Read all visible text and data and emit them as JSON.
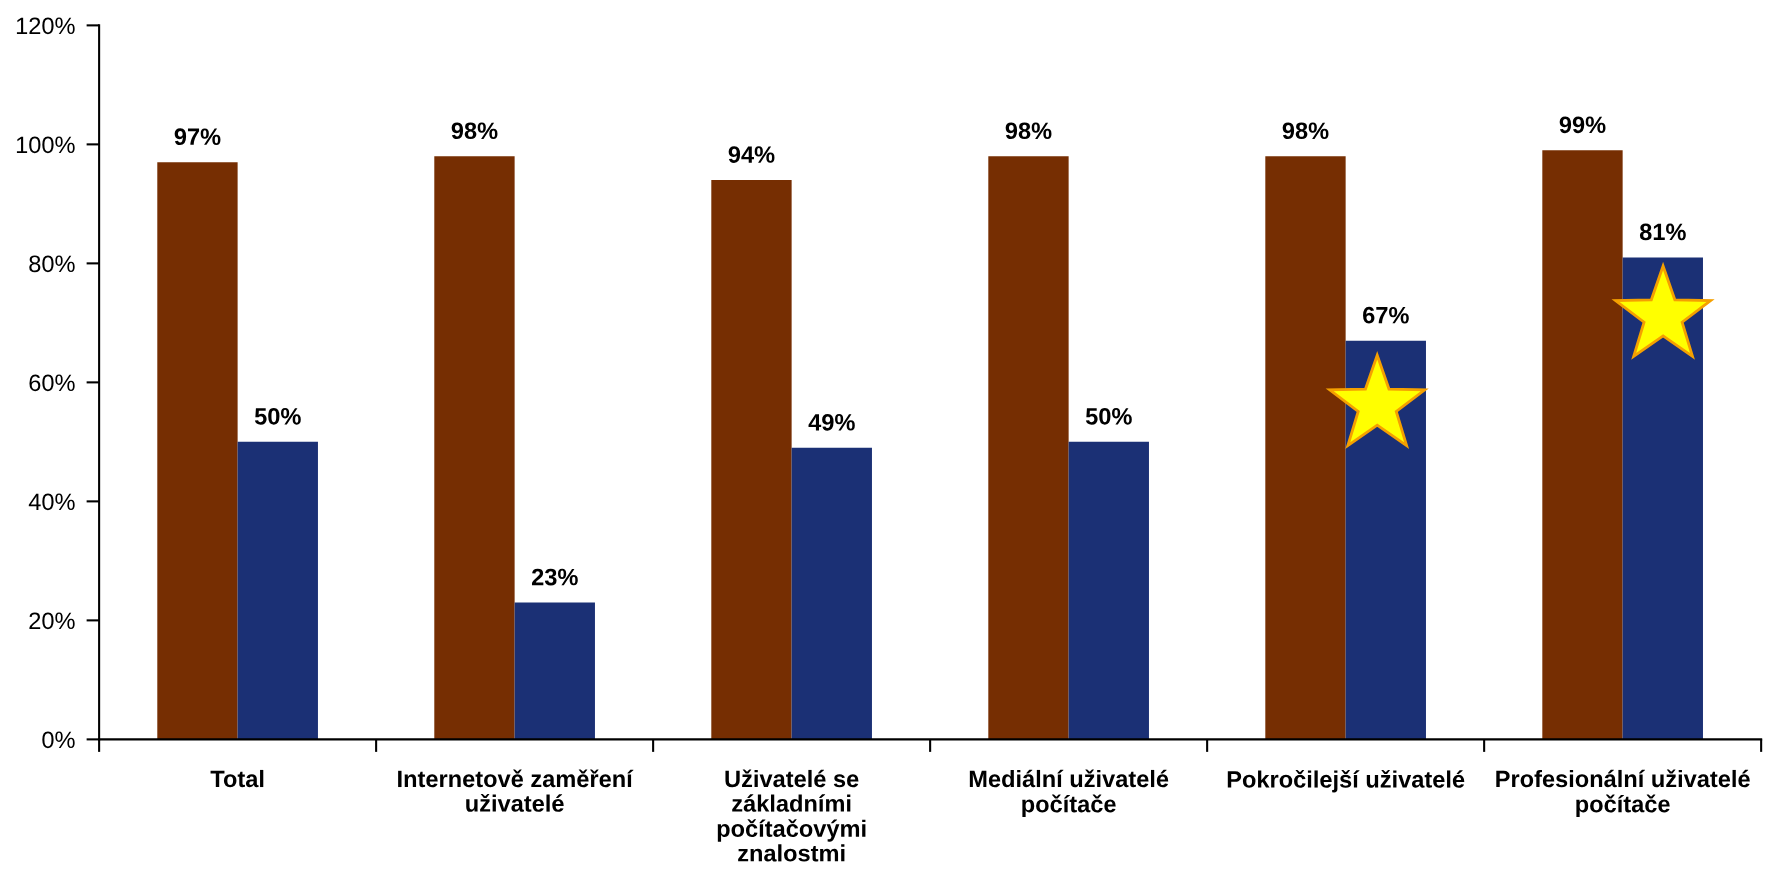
{
  "chart_data": {
    "type": "bar",
    "categories": [
      "Total",
      "Internetově zaměření\nuživatelé",
      "Uživatelé se\nzákladními\npočítačovými\nznalostmi",
      "Mediální uživatelé\npočítače",
      "Pokročilejší uživatelé",
      "Profesionální uživatelé\npočítače"
    ],
    "series": [
      {
        "color": "#762e02",
        "values": [
          97,
          98,
          94,
          98,
          98,
          99
        ],
        "value_labels": [
          "97%",
          "98%",
          "94%",
          "98%",
          "98%",
          "99%"
        ]
      },
      {
        "color": "#1b3075",
        "values": [
          50,
          23,
          49,
          50,
          67,
          81
        ],
        "value_labels": [
          "50%",
          "23%",
          "49%",
          "50%",
          "67%",
          "81%"
        ]
      }
    ],
    "ylim": [
      0,
      120
    ],
    "yticks": [
      {
        "value": 0,
        "label": "0%"
      },
      {
        "value": 20,
        "label": "20%"
      },
      {
        "value": 40,
        "label": "40%"
      },
      {
        "value": 60,
        "label": "60%"
      },
      {
        "value": 80,
        "label": "80%"
      },
      {
        "value": 100,
        "label": "100%"
      },
      {
        "value": 120,
        "label": "120%"
      }
    ]
  }
}
